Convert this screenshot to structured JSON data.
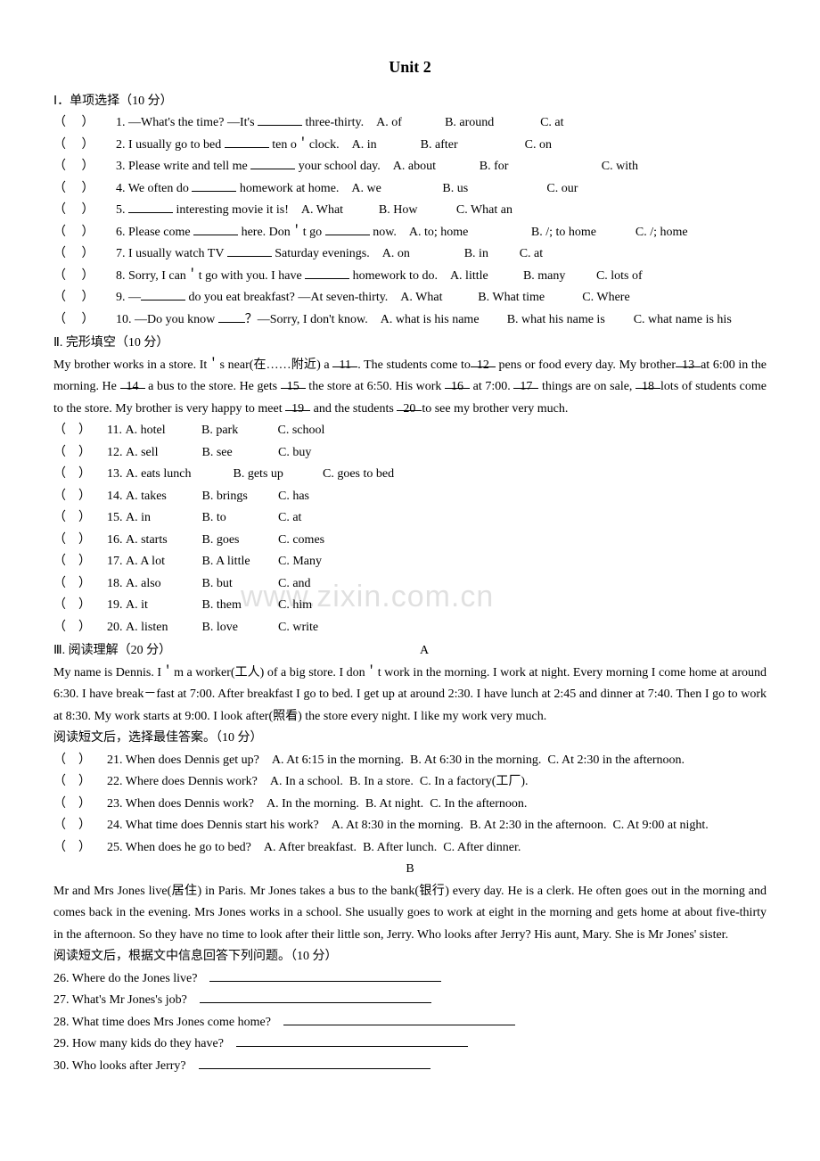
{
  "title": "Unit 2",
  "section1": {
    "heading": "Ⅰ．单项选择（10 分）",
    "items": [
      {
        "n": "1",
        "q": "—What's the time? —It's ",
        "post": " three-thirty.",
        "a": "A. of",
        "b": "B. around",
        "c": "C. at",
        "aw": 70,
        "bw": 100,
        "cw": 60
      },
      {
        "n": "2",
        "q": "I usually go to bed ",
        "post": " ten o＇clock.",
        "a": "A. in",
        "b": "B. after",
        "c": "C. on",
        "aw": 70,
        "bw": 110,
        "cw": 60
      },
      {
        "n": "3",
        "q": "Please write and tell me ",
        "post": " your school day.",
        "a": "A. about",
        "b": "B. for",
        "c": "C. with",
        "aw": 90,
        "bw": 130,
        "cw": 60
      },
      {
        "n": "4",
        "q": "We often do ",
        "post": " homework at home.",
        "a": "A. we",
        "b": "B. us",
        "c": "C. our",
        "aw": 95,
        "bw": 110,
        "cw": 60
      },
      {
        "n": "5",
        "q": "",
        "post": " interesting movie it is!",
        "a": "A. What",
        "b": "B. How",
        "c": "C. What an",
        "aw": 80,
        "bw": 80,
        "cw": 80
      },
      {
        "n": "6",
        "q": "Please come ",
        "post": " here. Don＇t go ",
        "post2": " now.",
        "a": "A. to; home",
        "b": "B. /; to home",
        "c": "C. /; home",
        "aw": 130,
        "bw": 110,
        "cw": 80,
        "double": true
      },
      {
        "n": "7",
        "q": "I usually watch TV ",
        "post": " Saturday evenings.",
        "a": "A. on",
        "b": "B. in",
        "c": "C. at",
        "aw": 85,
        "bw": 55,
        "cw": 50
      },
      {
        "n": "8",
        "q": "Sorry, I can＇t go with you. I have ",
        "post": " homework to do.",
        "a": "A. little",
        "b": "B. many",
        "c": "C. lots of",
        "aw": 75,
        "bw": 75,
        "cw": 70
      },
      {
        "n": "9",
        "q": "—",
        "post": " do you eat breakfast? —At seven-thirty.",
        "a": "A. What",
        "b": "B. What time",
        "c": "C. Where",
        "aw": 80,
        "bw": 110,
        "cw": 70
      },
      {
        "n": "10",
        "q": "—Do you know ",
        "post": "？—Sorry, I don't know.",
        "a": "A. what is his name",
        "b": "B. what his name is",
        "c": "C. what name is his",
        "aw": 135,
        "bw": 135,
        "cw": 135,
        "shortblank": true
      }
    ]
  },
  "section2": {
    "heading": "Ⅱ. 完形填空（10 分）",
    "passage_parts": [
      "My brother works in a store. It＇s near(在……附近) a ",
      ". The students come to",
      " pens or food every day. My brother",
      "at 6:00 in the morning. He ",
      " a bus to the store. He gets ",
      " the store at 6:50. His work ",
      " at 7:00. ",
      " things are on sale, ",
      "lots of students come to the store. My brother is very happy to meet ",
      " and the students ",
      "to see my brother very much."
    ],
    "blanks": [
      "11",
      "12",
      "13",
      "14",
      "15",
      "16",
      "17",
      "18",
      "19",
      "20"
    ],
    "options": [
      {
        "n": "11",
        "a": "A. hotel",
        "b": "B. park",
        "c": "C. school"
      },
      {
        "n": "12",
        "a": "A. sell",
        "b": "B. see",
        "c": "C. buy"
      },
      {
        "n": "13",
        "a": "A. eats lunch",
        "b": "B. gets up",
        "c": "C. goes to bed"
      },
      {
        "n": "14",
        "a": "A. takes",
        "b": "B. brings",
        "c": "C. has"
      },
      {
        "n": "15",
        "a": "A. in",
        "b": "B. to",
        "c": "C. at"
      },
      {
        "n": "16",
        "a": "A. starts",
        "b": "B. goes",
        "c": "C. comes"
      },
      {
        "n": "17",
        "a": "A. A lot",
        "b": "B. A little",
        "c": "C. Many"
      },
      {
        "n": "18",
        "a": "A. also",
        "b": "B. but",
        "c": "C. and"
      },
      {
        "n": "19",
        "a": "A. it",
        "b": "B. them",
        "c": "C. him"
      },
      {
        "n": "20",
        "a": "A. listen",
        "b": "B. love",
        "c": "C. write"
      }
    ]
  },
  "section3": {
    "heading": "Ⅲ. 阅读理解（20 分）",
    "letterA": "A",
    "passageA": "My name is Dennis. I＇m a worker(工人) of a big store. I don＇t work in the morning. I work at night. Every morning I come home at around 6:30. I have break－fast at 7:00. After breakfast I go to bed. I get up at around 2:30. I have lunch at 2:45 and dinner at 7:40. Then I go to work at 8:30. My work starts at 9:00. I look after(照看) the store every night. I like my work very much.",
    "instrA": "阅读短文后，选择最佳答案。（10 分）",
    "qa": [
      {
        "n": "21",
        "q": "When does Dennis get up?",
        "a": "A. At 6:15 in the morning.",
        "b": "B. At 6:30 in the morning.",
        "c": "C. At 2:30 in the afternoon."
      },
      {
        "n": "22",
        "q": "Where does Dennis work?",
        "a": "A. In a school.",
        "b": "B. In a store.",
        "c": "C. In a factory(工厂)."
      },
      {
        "n": "23",
        "q": "When does Dennis work?",
        "a": "A. In the morning.",
        "b": "B. At night.",
        "c": "C. In the afternoon."
      },
      {
        "n": "24",
        "q": "What time does Dennis start his work?",
        "a": "A. At 8:30 in the morning.",
        "b": "B. At 2:30 in the afternoon.",
        "c": "C. At 9:00 at night."
      },
      {
        "n": "25",
        "q": "When does he go to bed?",
        "a": "A. After breakfast.",
        "b": "B. After lunch.",
        "c": "C. After dinner."
      }
    ],
    "letterB": "B",
    "passageB": "Mr and Mrs Jones live(居住) in Paris. Mr Jones takes a bus to the bank(银行) every day. He is a clerk. He often goes out in the morning and comes back in the evening. Mrs Jones works in a school. She usually goes to work at eight in the morning and gets home at about five-thirty in the afternoon. So they have no time to look after their little son, Jerry. Who looks after Jerry? His aunt, Mary. She is Mr Jones' sister.",
    "instrB": "阅读短文后，根据文中信息回答下列问题。（10 分）",
    "qb": [
      {
        "n": "26",
        "q": "Where do the Jones live?"
      },
      {
        "n": "27",
        "q": "What's Mr Jones's job?"
      },
      {
        "n": "28",
        "q": "What time does Mrs Jones come home?"
      },
      {
        "n": "29",
        "q": "How many kids do they have?"
      },
      {
        "n": "30",
        "q": "Who looks after Jerry?"
      }
    ]
  },
  "watermark_text": "www.zixin.com.cn"
}
